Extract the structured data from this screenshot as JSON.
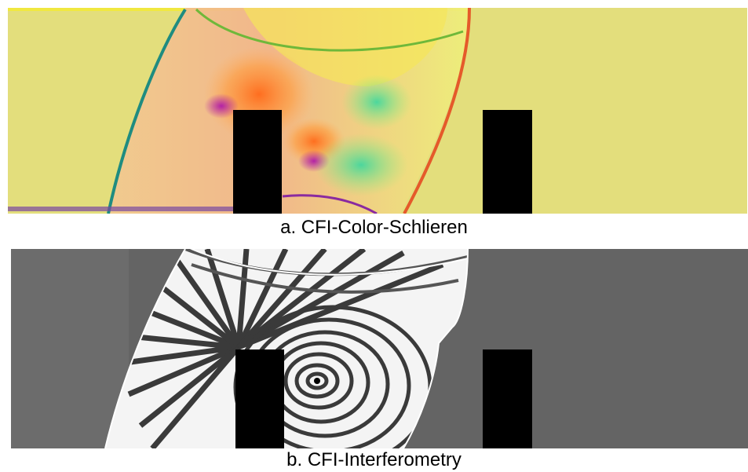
{
  "figure": {
    "panel_a": {
      "caption": "a. CFI-Color-Schlieren",
      "background_color": "#e3de7c",
      "obstacle_color": "#000000"
    },
    "panel_b": {
      "caption": "b. CFI-Interferometry",
      "background_color": "#646464",
      "obstacle_color": "#000000"
    }
  }
}
